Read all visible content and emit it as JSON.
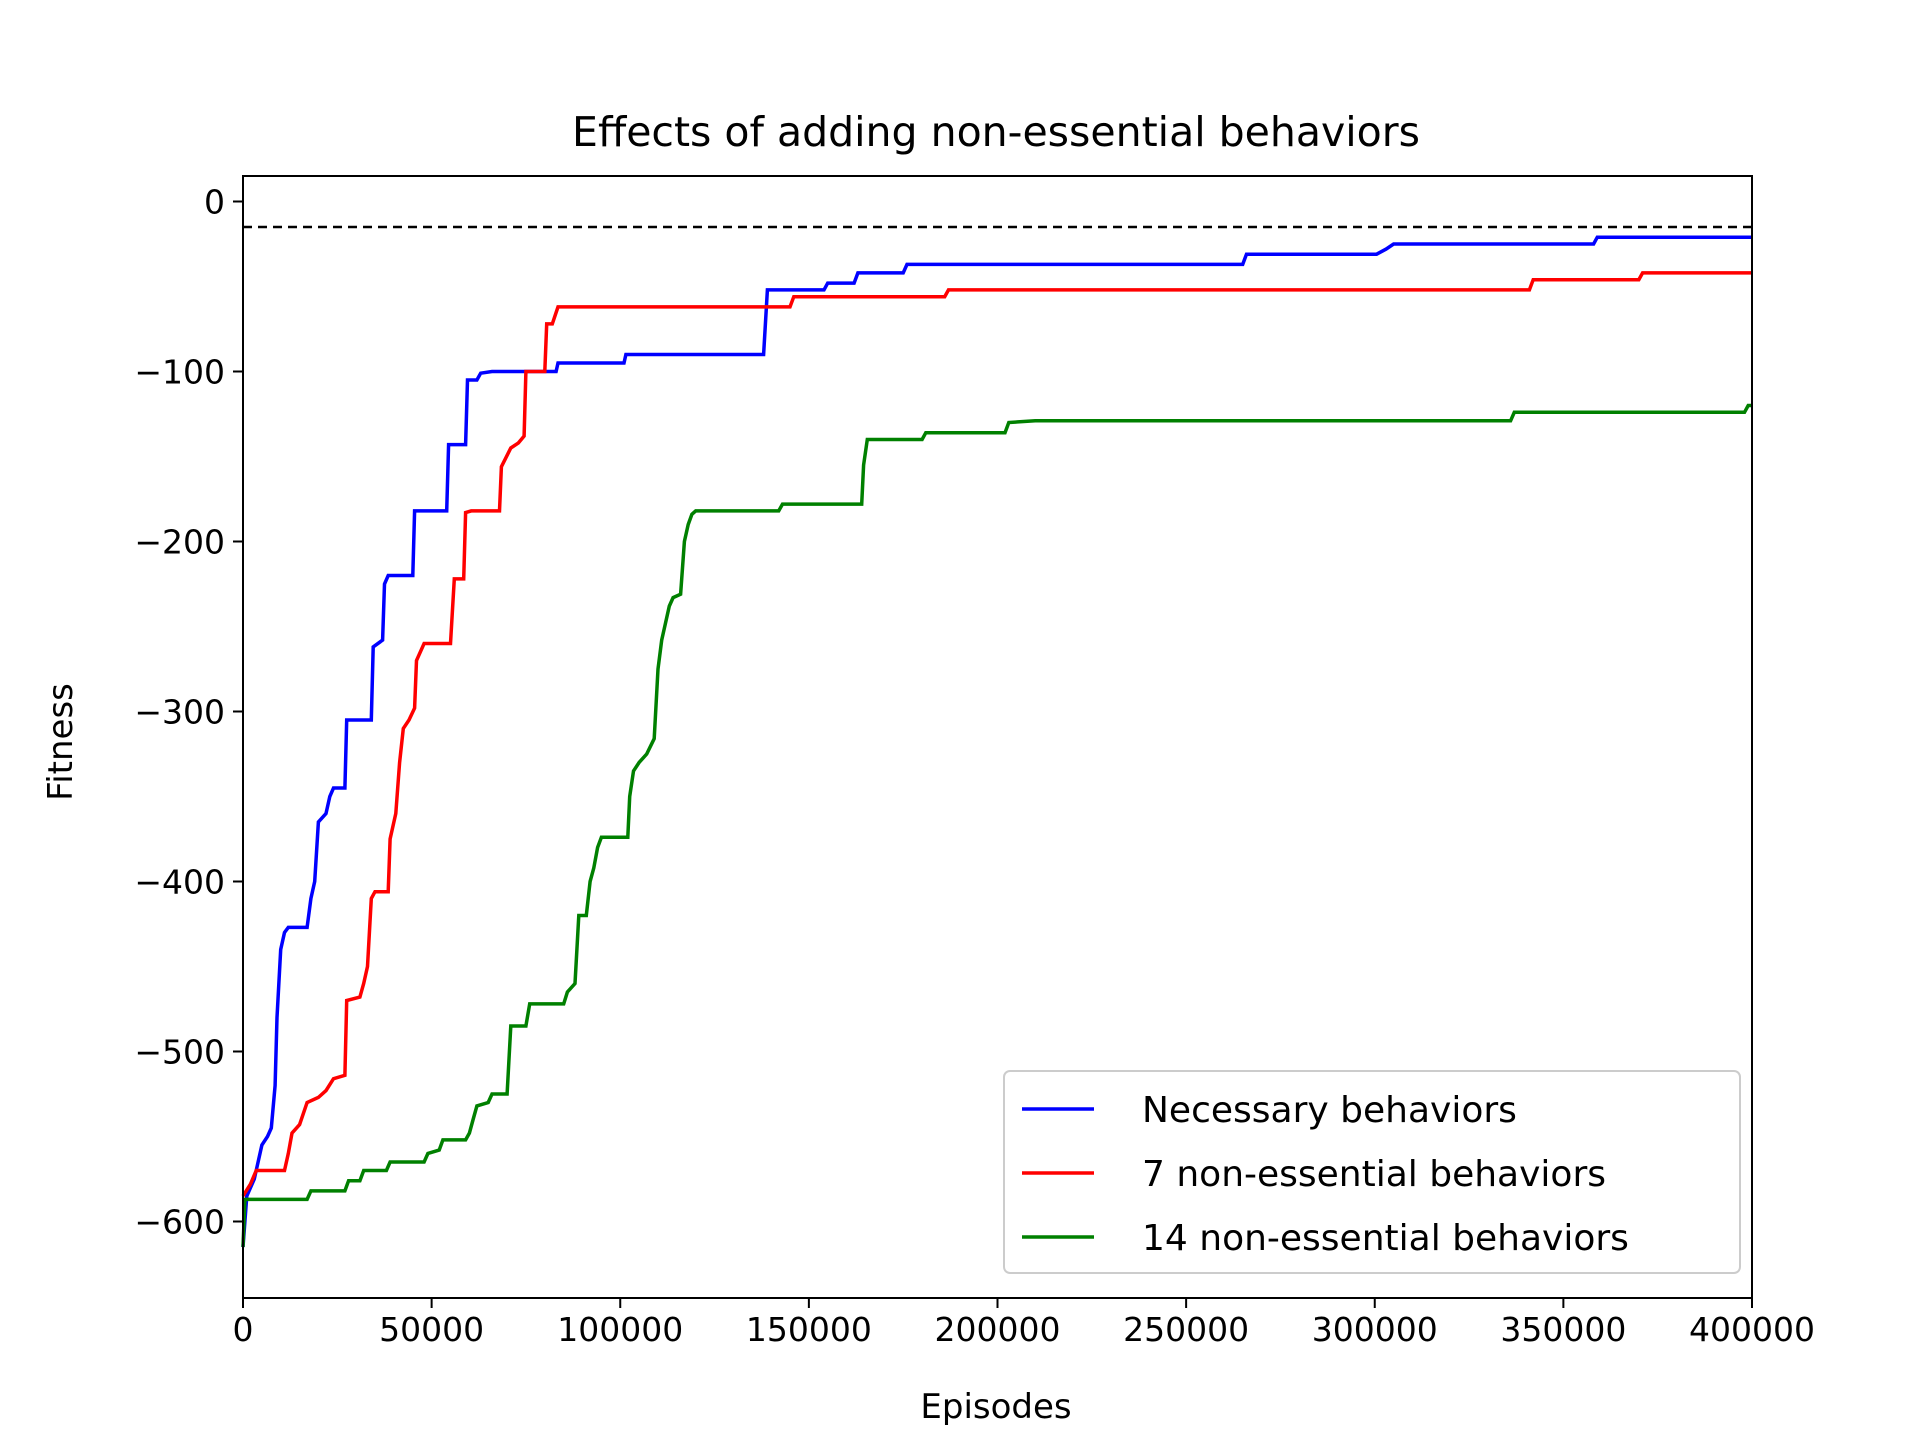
{
  "chart_data": {
    "type": "line",
    "title": "Effects of adding non-essential behaviors",
    "xlabel": "Episodes",
    "ylabel": "Fitness",
    "xlim": [
      0,
      400000
    ],
    "ylim": [
      -645,
      15
    ],
    "xticks": [
      0,
      50000,
      100000,
      150000,
      200000,
      250000,
      300000,
      350000,
      400000
    ],
    "xtick_labels": [
      "0",
      "50000",
      "100000",
      "150000",
      "200000",
      "250000",
      "300000",
      "350000",
      "400000"
    ],
    "yticks": [
      0,
      -100,
      -200,
      -300,
      -400,
      -500,
      -600
    ],
    "ytick_labels": [
      "0",
      "−100",
      "−200",
      "−300",
      "−400",
      "−500",
      "−600"
    ],
    "grid": false,
    "legend_position": "lower-right",
    "reference_line": {
      "y": -15,
      "style": "dashed",
      "color": "#000000"
    },
    "series": [
      {
        "name": "Necessary behaviors",
        "color": "#0000ff",
        "points": [
          [
            0,
            -615
          ],
          [
            1000,
            -585
          ],
          [
            3000,
            -575
          ],
          [
            4000,
            -565
          ],
          [
            5000,
            -555
          ],
          [
            6500,
            -550
          ],
          [
            7500,
            -545
          ],
          [
            8500,
            -520
          ],
          [
            9000,
            -480
          ],
          [
            10000,
            -440
          ],
          [
            11000,
            -430
          ],
          [
            12000,
            -427
          ],
          [
            17000,
            -427
          ],
          [
            18000,
            -410
          ],
          [
            19000,
            -400
          ],
          [
            20000,
            -365
          ],
          [
            22000,
            -360
          ],
          [
            23000,
            -350
          ],
          [
            24000,
            -345
          ],
          [
            27000,
            -345
          ],
          [
            27500,
            -305
          ],
          [
            34000,
            -305
          ],
          [
            34500,
            -262
          ],
          [
            37000,
            -258
          ],
          [
            37500,
            -225
          ],
          [
            38500,
            -220
          ],
          [
            45000,
            -220
          ],
          [
            45500,
            -182
          ],
          [
            54000,
            -182
          ],
          [
            54500,
            -143
          ],
          [
            59000,
            -143
          ],
          [
            59500,
            -105
          ],
          [
            62000,
            -105
          ],
          [
            63000,
            -101
          ],
          [
            66000,
            -100
          ],
          [
            83000,
            -100
          ],
          [
            83500,
            -95
          ],
          [
            101000,
            -95
          ],
          [
            101500,
            -90
          ],
          [
            138000,
            -90
          ],
          [
            139000,
            -52
          ],
          [
            154000,
            -52
          ],
          [
            155000,
            -48
          ],
          [
            162000,
            -48
          ],
          [
            163000,
            -42
          ],
          [
            175000,
            -42
          ],
          [
            176000,
            -37
          ],
          [
            265000,
            -37
          ],
          [
            266000,
            -31
          ],
          [
            300000,
            -31
          ],
          [
            300500,
            -31
          ],
          [
            303000,
            -28
          ],
          [
            305000,
            -25
          ],
          [
            358000,
            -25
          ],
          [
            359000,
            -21
          ],
          [
            400000,
            -21
          ]
        ]
      },
      {
        "name": "7 non-essential behaviors",
        "color": "#ff0000",
        "points": [
          [
            0,
            -585
          ],
          [
            2000,
            -578
          ],
          [
            3500,
            -570
          ],
          [
            11000,
            -570
          ],
          [
            12000,
            -560
          ],
          [
            13000,
            -548
          ],
          [
            15000,
            -543
          ],
          [
            17000,
            -530
          ],
          [
            20000,
            -527
          ],
          [
            22000,
            -523
          ],
          [
            24000,
            -516
          ],
          [
            27000,
            -514
          ],
          [
            27500,
            -470
          ],
          [
            31000,
            -468
          ],
          [
            32000,
            -460
          ],
          [
            33000,
            -450
          ],
          [
            34000,
            -410
          ],
          [
            35000,
            -406
          ],
          [
            38500,
            -406
          ],
          [
            39000,
            -375
          ],
          [
            40500,
            -360
          ],
          [
            41500,
            -330
          ],
          [
            42500,
            -310
          ],
          [
            44000,
            -305
          ],
          [
            45500,
            -298
          ],
          [
            46000,
            -270
          ],
          [
            48000,
            -260
          ],
          [
            55000,
            -260
          ],
          [
            56000,
            -222
          ],
          [
            58500,
            -222
          ],
          [
            59000,
            -183
          ],
          [
            60500,
            -182
          ],
          [
            68000,
            -182
          ],
          [
            68500,
            -156
          ],
          [
            71000,
            -145
          ],
          [
            73000,
            -142
          ],
          [
            74500,
            -138
          ],
          [
            75000,
            -100
          ],
          [
            80000,
            -100
          ],
          [
            80500,
            -72
          ],
          [
            82000,
            -72
          ],
          [
            83500,
            -62
          ],
          [
            145000,
            -62
          ],
          [
            146000,
            -56
          ],
          [
            186000,
            -56
          ],
          [
            187000,
            -52
          ],
          [
            341000,
            -52
          ],
          [
            342000,
            -46
          ],
          [
            370000,
            -46
          ],
          [
            371000,
            -42
          ],
          [
            400000,
            -42
          ]
        ]
      },
      {
        "name": "14 non-essential behaviors",
        "color": "#008000",
        "points": [
          [
            0,
            -615
          ],
          [
            500,
            -587
          ],
          [
            17000,
            -587
          ],
          [
            18000,
            -582
          ],
          [
            27000,
            -582
          ],
          [
            28000,
            -576
          ],
          [
            31000,
            -576
          ],
          [
            32000,
            -570
          ],
          [
            38000,
            -570
          ],
          [
            39000,
            -565
          ],
          [
            48000,
            -565
          ],
          [
            49000,
            -560
          ],
          [
            52000,
            -558
          ],
          [
            53000,
            -552
          ],
          [
            59000,
            -552
          ],
          [
            60000,
            -548
          ],
          [
            61000,
            -540
          ],
          [
            62000,
            -532
          ],
          [
            65000,
            -530
          ],
          [
            66000,
            -525
          ],
          [
            70000,
            -525
          ],
          [
            71000,
            -485
          ],
          [
            75000,
            -485
          ],
          [
            76000,
            -472
          ],
          [
            85000,
            -472
          ],
          [
            86000,
            -465
          ],
          [
            88000,
            -460
          ],
          [
            89000,
            -420
          ],
          [
            91000,
            -420
          ],
          [
            92000,
            -400
          ],
          [
            93000,
            -392
          ],
          [
            94000,
            -380
          ],
          [
            95000,
            -374
          ],
          [
            102000,
            -374
          ],
          [
            102500,
            -350
          ],
          [
            103500,
            -335
          ],
          [
            105000,
            -330
          ],
          [
            107000,
            -325
          ],
          [
            109000,
            -316
          ],
          [
            110000,
            -275
          ],
          [
            111000,
            -258
          ],
          [
            112000,
            -248
          ],
          [
            113000,
            -238
          ],
          [
            114000,
            -233
          ],
          [
            116000,
            -231
          ],
          [
            117000,
            -200
          ],
          [
            118000,
            -190
          ],
          [
            119000,
            -184
          ],
          [
            120000,
            -182
          ],
          [
            142000,
            -182
          ],
          [
            143000,
            -178
          ],
          [
            164000,
            -178
          ],
          [
            164500,
            -155
          ],
          [
            165500,
            -140
          ],
          [
            180000,
            -140
          ],
          [
            181000,
            -136
          ],
          [
            202000,
            -136
          ],
          [
            203000,
            -130
          ],
          [
            210000,
            -129
          ],
          [
            336000,
            -129
          ],
          [
            337000,
            -124
          ],
          [
            398000,
            -124
          ],
          [
            399000,
            -120
          ],
          [
            400000,
            -120
          ]
        ]
      }
    ]
  }
}
